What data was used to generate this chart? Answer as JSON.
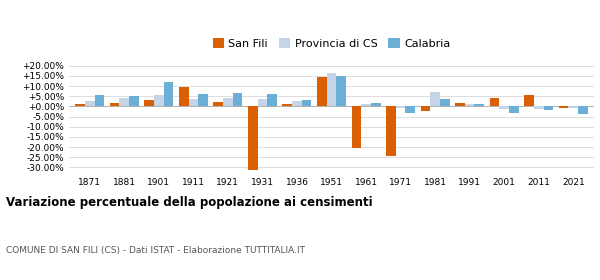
{
  "years": [
    1871,
    1881,
    1901,
    1911,
    1921,
    1931,
    1936,
    1951,
    1961,
    1971,
    1981,
    1991,
    2001,
    2011,
    2021
  ],
  "san_fili": [
    1.0,
    1.5,
    3.0,
    9.5,
    2.0,
    -31.0,
    1.0,
    14.5,
    -20.5,
    -24.5,
    -2.5,
    1.5,
    4.0,
    5.5,
    -1.0
  ],
  "provincia_cs": [
    2.5,
    4.0,
    5.5,
    3.5,
    4.0,
    3.5,
    2.5,
    16.5,
    1.0,
    -1.0,
    7.0,
    1.0,
    -1.5,
    -1.5,
    -1.0
  ],
  "calabria": [
    5.5,
    5.0,
    12.0,
    6.0,
    6.5,
    6.0,
    3.0,
    15.0,
    1.5,
    -3.0,
    3.5,
    1.0,
    -3.0,
    -2.0,
    -3.5
  ],
  "color_san_fili": "#d95f02",
  "color_provincia": "#c6d4e8",
  "color_calabria": "#6baed6",
  "title": "Variazione percentuale della popolazione ai censimenti",
  "subtitle": "COMUNE DI SAN FILI (CS) - Dati ISTAT - Elaborazione TUTTITALIA.IT",
  "ylim": [
    -33,
    22
  ],
  "yticks": [
    -30,
    -25,
    -20,
    -15,
    -10,
    -5,
    0,
    5,
    10,
    15,
    20
  ],
  "legend_labels": [
    "San Fili",
    "Provincia di CS",
    "Calabria"
  ],
  "bar_width": 0.28
}
